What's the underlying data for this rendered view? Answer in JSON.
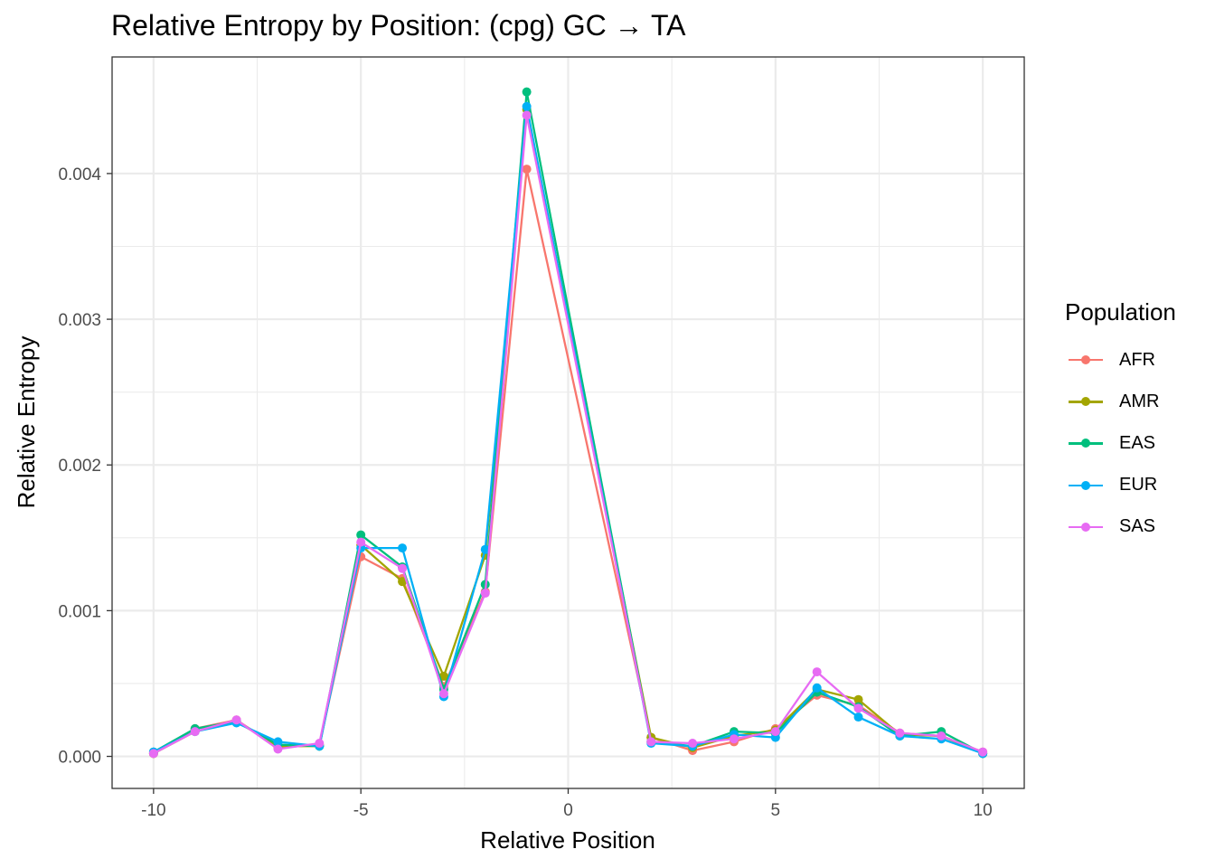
{
  "chart_data": {
    "type": "line",
    "title": "Relative Entropy by Position: (cpg) GC → TA",
    "xlabel": "Relative Position",
    "ylabel": "Relative Entropy",
    "xlim": [
      -11.0,
      11.0
    ],
    "ylim": [
      -0.00022,
      0.0048
    ],
    "x_ticks": [
      -10,
      -5,
      0,
      5,
      10
    ],
    "x_tick_labels": [
      "-10",
      "-5",
      "0",
      "5",
      "10"
    ],
    "y_ticks": [
      0.0,
      0.001,
      0.002,
      0.003,
      0.004
    ],
    "y_tick_labels": [
      "0.000",
      "0.001",
      "0.002",
      "0.003",
      "0.004"
    ],
    "grid": true,
    "legend_title": "Population",
    "legend_position": "right",
    "x": [
      -10,
      -9,
      -8,
      -7,
      -6,
      -5,
      -4,
      -3,
      -2,
      -1,
      2,
      3,
      4,
      5,
      6,
      7,
      8,
      9,
      10
    ],
    "series": [
      {
        "name": "AFR",
        "color": "#F8766D",
        "values": [
          2e-05,
          0.00019,
          0.00025,
          6e-05,
          8e-05,
          0.00137,
          0.00122,
          0.00048,
          0.00113,
          0.00403,
          0.00013,
          4e-05,
          0.0001,
          0.00019,
          0.00042,
          0.00035,
          0.00016,
          0.00014,
          3e-05
        ]
      },
      {
        "name": "AMR",
        "color": "#A3A500",
        "values": [
          2e-05,
          0.00017,
          0.00024,
          7e-05,
          7e-05,
          0.00145,
          0.0012,
          0.00055,
          0.00138,
          0.00444,
          0.00013,
          6e-05,
          0.00014,
          0.00018,
          0.00046,
          0.00039,
          0.00015,
          0.00014,
          2e-05
        ]
      },
      {
        "name": "EAS",
        "color": "#00BF7D",
        "values": [
          3e-05,
          0.00019,
          0.00024,
          8e-05,
          7e-05,
          0.00152,
          0.0013,
          0.00046,
          0.00118,
          0.00456,
          0.0001,
          7e-05,
          0.00017,
          0.00016,
          0.00044,
          0.00034,
          0.00014,
          0.00017,
          2e-05
        ]
      },
      {
        "name": "EUR",
        "color": "#00B0F6",
        "values": [
          3e-05,
          0.00017,
          0.00023,
          0.0001,
          7e-05,
          0.00143,
          0.00143,
          0.00041,
          0.00142,
          0.00446,
          9e-05,
          7e-05,
          0.00015,
          0.00013,
          0.00047,
          0.00027,
          0.00014,
          0.00012,
          2e-05
        ]
      },
      {
        "name": "SAS",
        "color": "#E76BF3",
        "values": [
          2e-05,
          0.00017,
          0.00025,
          5e-05,
          9e-05,
          0.00147,
          0.00129,
          0.00043,
          0.00112,
          0.0044,
          0.0001,
          9e-05,
          0.00012,
          0.00017,
          0.00058,
          0.00033,
          0.00016,
          0.00014,
          3e-05
        ]
      }
    ]
  }
}
